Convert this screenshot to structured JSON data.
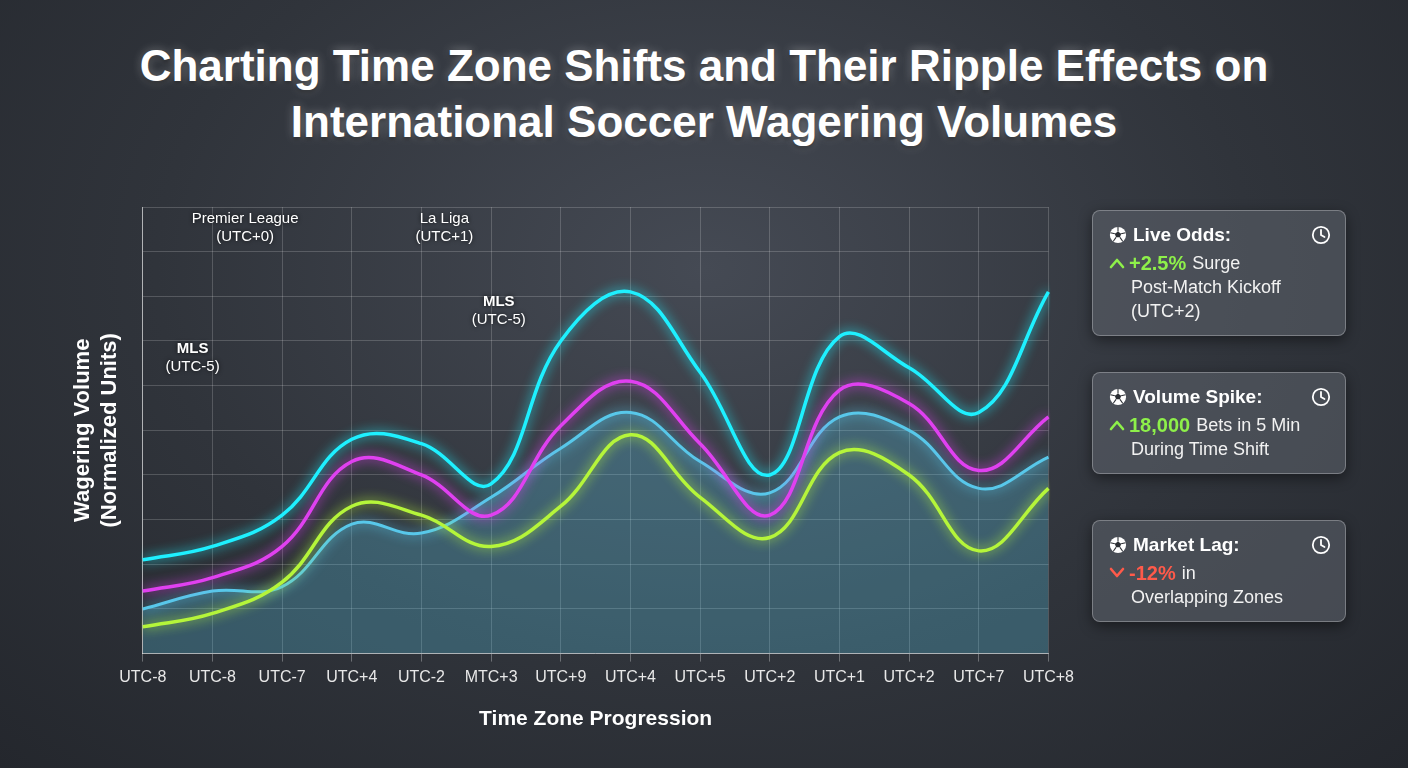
{
  "chart_data": {
    "type": "line",
    "title": "Charting Time Zone Shifts and Their Ripple Effects on International Soccer Wagering Volumes",
    "x_label": "Time Zone Progression",
    "y_label": "Wagering Volume (Normalized Units)",
    "categories": [
      "UTC-8",
      "UTC-8",
      "UTC-7",
      "UTC+4",
      "UTC-2",
      "MTC+3",
      "UTC+9",
      "UTC+4",
      "UTC+5",
      "UTC+2",
      "UTC+1",
      "UTC+2",
      "UTC+7",
      "UTC+8"
    ],
    "series": [
      {
        "color": "#1ef0ff",
        "values": [
          2.1,
          2.4,
          3.1,
          4.8,
          4.7,
          3.8,
          7.0,
          8.1,
          6.3,
          4.0,
          7.1,
          6.4,
          5.4,
          8.1
        ]
      },
      {
        "color": "#e040f0",
        "values": [
          1.4,
          1.7,
          2.4,
          4.3,
          4.0,
          3.1,
          5.1,
          6.1,
          4.7,
          3.1,
          5.9,
          5.6,
          4.1,
          5.3
        ]
      },
      {
        "color": "#58c8ea",
        "type": "area",
        "values": [
          1.0,
          1.4,
          1.5,
          2.9,
          2.7,
          3.5,
          4.6,
          5.4,
          4.3,
          3.6,
          5.3,
          5.0,
          3.7,
          4.4
        ]
      },
      {
        "color": "#b5f53a",
        "values": [
          0.6,
          0.9,
          1.6,
          3.3,
          3.1,
          2.4,
          3.3,
          4.9,
          3.5,
          2.6,
          4.5,
          4.0,
          2.3,
          3.7
        ]
      }
    ],
    "ylim": [
      0,
      10
    ],
    "yticks": [
      0,
      1,
      2,
      3,
      4,
      5,
      6,
      7,
      8,
      9,
      10
    ],
    "grid": true,
    "tick_labels": "x",
    "annotations": [
      "Premier League (UTC+0)",
      "La Liga (UTC+1)",
      "MLS (UTC-5)",
      "MLS (UTC-5)"
    ],
    "cards": [
      {
        "title": "Live Odds:",
        "value": "+2.5%",
        "text": [
          "Surge",
          "Post-Match Kickoff",
          "(UTC+2)"
        ]
      },
      {
        "title": "Volume Spike:",
        "value": "18,000",
        "text": [
          "Bets in 5 Min",
          "During Time Shift"
        ]
      },
      {
        "title": "Market Lag:",
        "value": "-12%",
        "text": [
          "in",
          "Overlapping Zones"
        ]
      }
    ]
  }
}
